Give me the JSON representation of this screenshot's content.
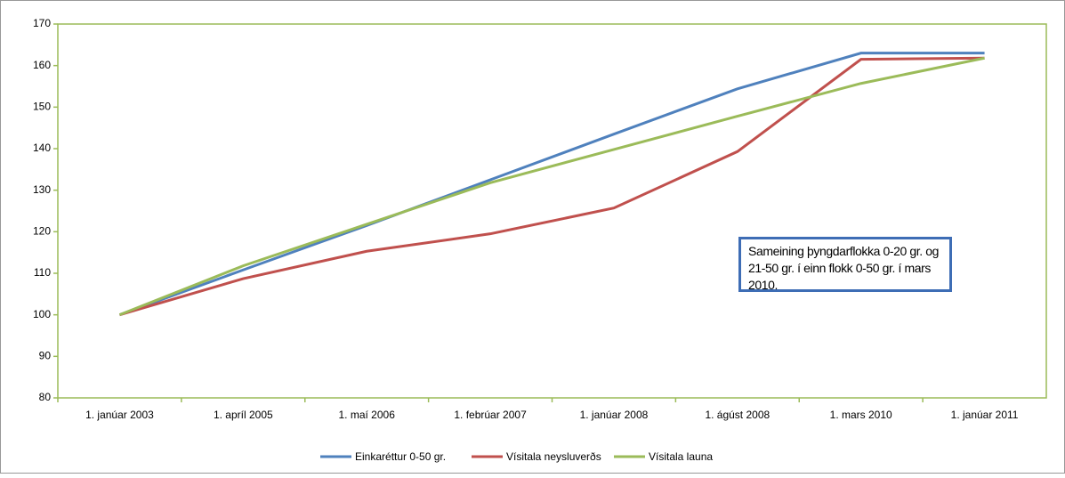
{
  "chart_data": {
    "type": "line",
    "categories": [
      "1. janúar 2003",
      "1. apríl 2005",
      "1. maí 2006",
      "1. febrúar 2007",
      "1. janúar 2008",
      "1. ágúst 2008",
      "1. mars 2010",
      "1. janúar 2011"
    ],
    "series": [
      {
        "name": "Einkaréttur 0-50 gr.",
        "color": "#4f81bd",
        "values": [
          100,
          110.8,
          121.5,
          132.5,
          143.5,
          154.4,
          163,
          163
        ]
      },
      {
        "name": "Vísitala neysluverðs",
        "color": "#c0504d",
        "values": [
          100,
          108.7,
          115.3,
          119.5,
          125.7,
          139.3,
          161.5,
          161.8
        ]
      },
      {
        "name": "Vísitala launa",
        "color": "#9bbb59",
        "values": [
          100,
          111.8,
          121.8,
          131.8,
          139.8,
          147.8,
          155.7,
          161.8
        ]
      }
    ],
    "ylim": [
      80,
      170
    ],
    "yticks": [
      80,
      90,
      100,
      110,
      120,
      130,
      140,
      150,
      160,
      170
    ],
    "legend": "bottom",
    "annotation": "Sameining þyngdarflokka 0-20 gr. og 21-50 gr. í einn flokk 0-50 gr. í mars 2010."
  }
}
